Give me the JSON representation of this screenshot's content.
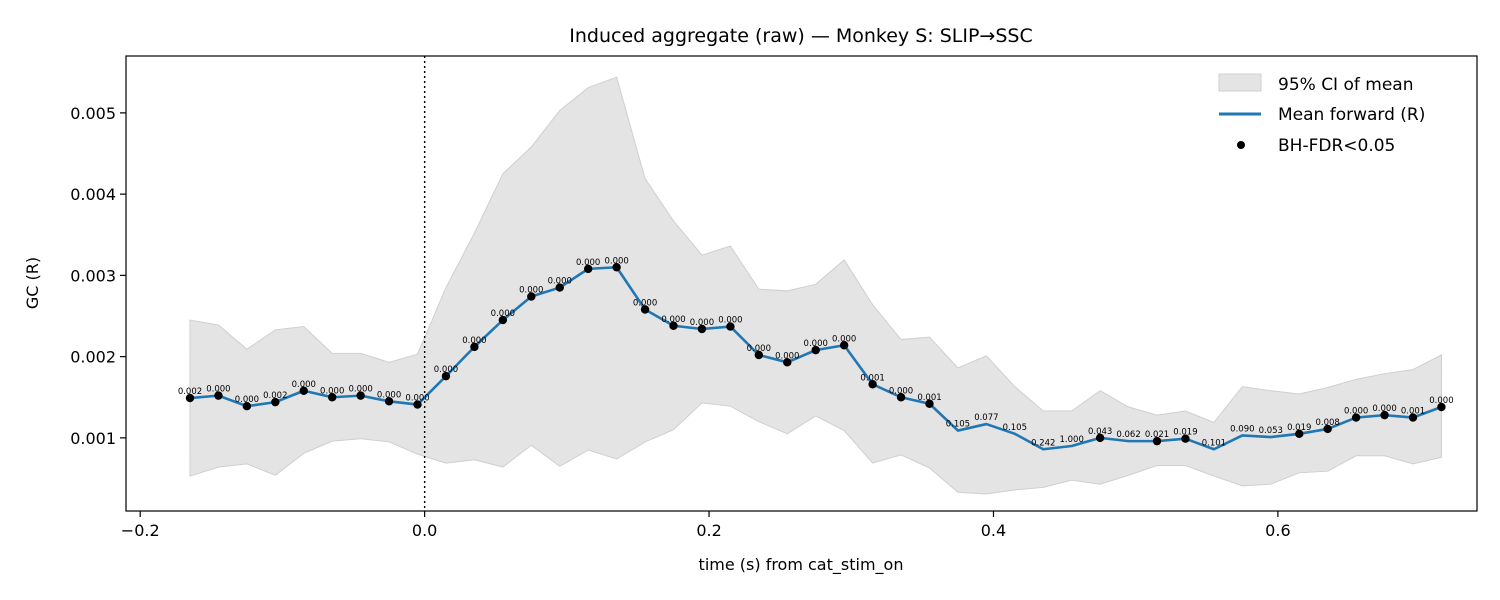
{
  "chart_data": {
    "type": "line",
    "title": "Induced aggregate (raw) — Monkey S: SLIP→SSC",
    "xlabel": "time (s) from cat_stim_on",
    "ylabel": "GC (R)",
    "xlim": [
      -0.21,
      0.74
    ],
    "ylim": [
      0.0001,
      0.0057
    ],
    "xticks": [
      -0.2,
      0.0,
      0.2,
      0.4,
      0.6
    ],
    "xtick_labels": [
      "−0.2",
      "0.0",
      "0.2",
      "0.4",
      "0.6"
    ],
    "yticks": [
      0.001,
      0.002,
      0.003,
      0.004,
      0.005
    ],
    "ytick_labels": [
      "0.001",
      "0.002",
      "0.003",
      "0.004",
      "0.005"
    ],
    "vline_x": 0.0,
    "grid": false,
    "legend_position": "upper right",
    "legend": {
      "ci": "95% CI of mean",
      "line": "Mean forward (R)",
      "points": "BH-FDR<0.05"
    },
    "colors": {
      "line": "#1f77b4",
      "ci_fill": "#e4e4e4",
      "ci_edge": "#cfcfcf",
      "points": "#000000"
    },
    "x": [
      -0.165,
      -0.145,
      -0.125,
      -0.105,
      -0.085,
      -0.065,
      -0.045,
      -0.025,
      -0.005,
      0.015,
      0.035,
      0.055,
      0.075,
      0.095,
      0.115,
      0.135,
      0.155,
      0.175,
      0.195,
      0.215,
      0.235,
      0.255,
      0.275,
      0.295,
      0.315,
      0.335,
      0.355,
      0.375,
      0.395,
      0.415,
      0.435,
      0.455,
      0.475,
      0.495,
      0.515,
      0.535,
      0.555,
      0.575,
      0.595,
      0.615,
      0.635,
      0.655,
      0.675,
      0.695,
      0.715
    ],
    "mean": [
      0.00149,
      0.00152,
      0.00139,
      0.00144,
      0.00158,
      0.0015,
      0.00152,
      0.00145,
      0.00141,
      0.00176,
      0.00212,
      0.00245,
      0.00274,
      0.00285,
      0.00308,
      0.0031,
      0.00258,
      0.00238,
      0.00234,
      0.00237,
      0.00202,
      0.00193,
      0.00208,
      0.00214,
      0.00166,
      0.0015,
      0.00142,
      0.00109,
      0.00117,
      0.00105,
      0.00086,
      0.0009,
      0.001,
      0.00096,
      0.00096,
      0.00099,
      0.00086,
      0.00103,
      0.00101,
      0.00105,
      0.00111,
      0.00125,
      0.00128,
      0.00125,
      0.00138
    ],
    "ci_upper": [
      0.00245,
      0.00239,
      0.00209,
      0.00233,
      0.00237,
      0.00204,
      0.00204,
      0.00193,
      0.00203,
      0.00285,
      0.00352,
      0.00425,
      0.00458,
      0.00503,
      0.00531,
      0.00544,
      0.00419,
      0.00367,
      0.00325,
      0.00336,
      0.00283,
      0.00281,
      0.00289,
      0.00319,
      0.00264,
      0.00221,
      0.00224,
      0.00186,
      0.00201,
      0.00163,
      0.00133,
      0.00133,
      0.00158,
      0.00138,
      0.00128,
      0.00133,
      0.00119,
      0.00163,
      0.00158,
      0.00154,
      0.00162,
      0.00172,
      0.00179,
      0.00184,
      0.00202
    ],
    "ci_lower": [
      0.00053,
      0.00064,
      0.00068,
      0.00054,
      0.00081,
      0.00096,
      0.00099,
      0.00095,
      0.0008,
      0.00069,
      0.00073,
      0.00064,
      0.00091,
      0.00065,
      0.00085,
      0.00074,
      0.00095,
      0.0011,
      0.00143,
      0.00139,
      0.0012,
      0.00105,
      0.00127,
      0.00109,
      0.00069,
      0.00079,
      0.00063,
      0.00033,
      0.00031,
      0.00036,
      0.00039,
      0.00048,
      0.00043,
      0.00054,
      0.00066,
      0.00066,
      0.00053,
      0.00041,
      0.00043,
      0.00057,
      0.00059,
      0.00078,
      0.00078,
      0.00068,
      0.00076
    ],
    "significant": [
      true,
      true,
      true,
      true,
      true,
      true,
      true,
      true,
      true,
      true,
      true,
      true,
      true,
      true,
      true,
      true,
      true,
      true,
      true,
      true,
      true,
      true,
      true,
      true,
      true,
      true,
      true,
      false,
      false,
      false,
      false,
      false,
      true,
      false,
      true,
      true,
      false,
      false,
      false,
      true,
      true,
      true,
      true,
      true,
      true
    ],
    "p_labels": [
      "0.002",
      "0.000",
      "0.000",
      "0.002",
      "0.000",
      "0.000",
      "0.000",
      "0.000",
      "0.000",
      "0.000",
      "0.000",
      "0.000",
      "0.000",
      "0.000",
      "0.000",
      "0.000",
      "0.000",
      "0.000",
      "0.000",
      "0.000",
      "0.000",
      "0.000",
      "0.000",
      "0.000",
      "0.001",
      "0.000",
      "0.001",
      "0.105",
      "0.077",
      "0.105",
      "0.242",
      "1.000",
      "0.043",
      "0.062",
      "0.021",
      "0.019",
      "0.101",
      "0.090",
      "0.053",
      "0.019",
      "0.008",
      "0.000",
      "0.000",
      "0.001",
      "0.000"
    ]
  }
}
